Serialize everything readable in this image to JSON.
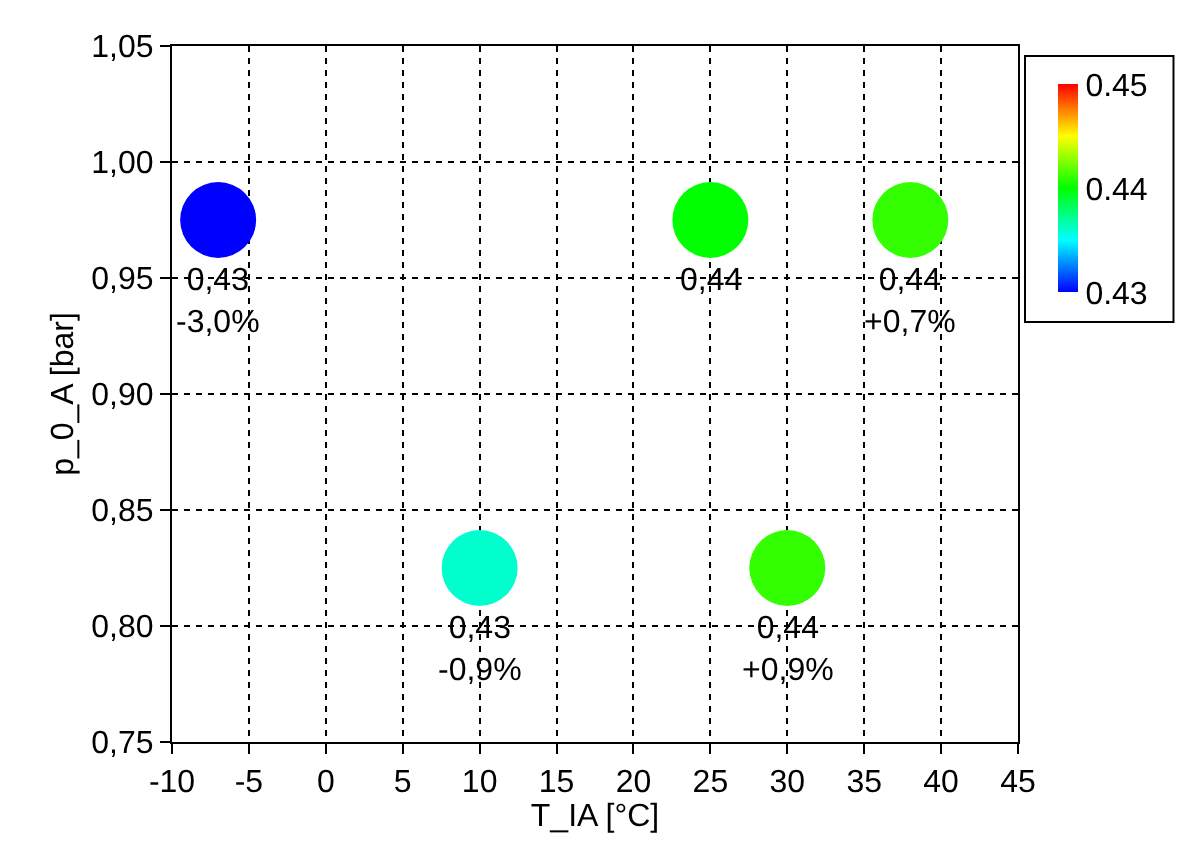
{
  "chart_data": {
    "type": "scatter",
    "xlabel": "T_IA [°C]",
    "ylabel": "p_0_A [bar]",
    "x": [
      -7,
      10,
      25,
      30,
      38
    ],
    "values": [
      0.975,
      0.825,
      0.975,
      0.825,
      0.975
    ],
    "cvalues": [
      0.43,
      0.436,
      0.44,
      0.441,
      0.441
    ],
    "annotations": [
      {
        "text": "0,43\n-3,0%",
        "x": -7,
        "y": 0.975
      },
      {
        "text": "0,43\n-0,9%",
        "x": 10,
        "y": 0.825
      },
      {
        "text": "0,44",
        "x": 25,
        "y": 0.975
      },
      {
        "text": "0,44\n+0,9%",
        "x": 30,
        "y": 0.825
      },
      {
        "text": "0,44\n+0,7%",
        "x": 38,
        "y": 0.975
      }
    ],
    "clim": [
      0.43,
      0.45
    ],
    "cticks": [
      0.43,
      0.44,
      0.45
    ],
    "xlim": [
      -10,
      45
    ],
    "xticks": [
      -10,
      -5,
      0,
      5,
      10,
      15,
      20,
      25,
      30,
      35,
      40,
      45
    ],
    "ylim": [
      0.75,
      1.05
    ],
    "yticks": [
      {
        "value": 0.75,
        "label": "0,75"
      },
      {
        "value": 0.8,
        "label": "0,80"
      },
      {
        "value": 0.85,
        "label": "0,85"
      },
      {
        "value": 0.9,
        "label": "0,90"
      },
      {
        "value": 0.95,
        "label": "0,95"
      },
      {
        "value": 1.0,
        "label": "1,00"
      },
      {
        "value": 1.05,
        "label": "1,05"
      }
    ],
    "grid": true,
    "marker": "circle",
    "legend": false
  }
}
